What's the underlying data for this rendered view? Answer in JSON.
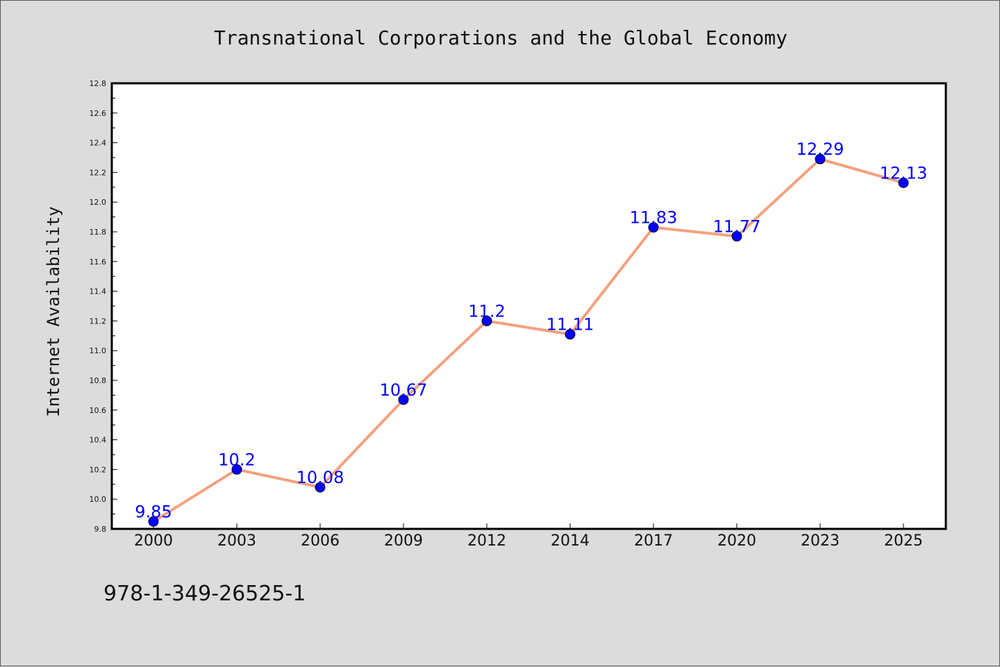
{
  "chart_data": {
    "type": "line",
    "title": "Transnational Corporations and the Global Economy",
    "xlabel": "",
    "ylabel": "Internet Availability",
    "categories": [
      "2000",
      "2003",
      "2006",
      "2009",
      "2012",
      "2014",
      "2017",
      "2020",
      "2023",
      "2025"
    ],
    "series": [
      {
        "values": [
          9.85,
          10.2,
          10.08,
          10.67,
          11.2,
          11.11,
          11.83,
          11.77,
          12.29,
          12.13
        ],
        "data_labels": [
          "9.85",
          "10.2",
          "10.08",
          "10.67",
          "11.2",
          "11.11",
          "11.83",
          "11.77",
          "12.29",
          "12.13"
        ]
      }
    ],
    "ylim": [
      9.8,
      12.8
    ],
    "yticks": [
      "9.8",
      "10.0",
      "10.2",
      "10.4",
      "10.6",
      "10.8",
      "11.0",
      "11.2",
      "11.4",
      "11.6",
      "11.8",
      "12.0",
      "12.2",
      "12.4",
      "12.6",
      "12.8"
    ],
    "grid": false,
    "legend": "none",
    "colors": {
      "line": "#f4a07e",
      "marker": "#0000ff",
      "label": "#0000ff",
      "background": "#dcdcdc",
      "plot_background": "#ffffff"
    }
  },
  "footer": {
    "isbn": "978-1-349-26525-1"
  }
}
